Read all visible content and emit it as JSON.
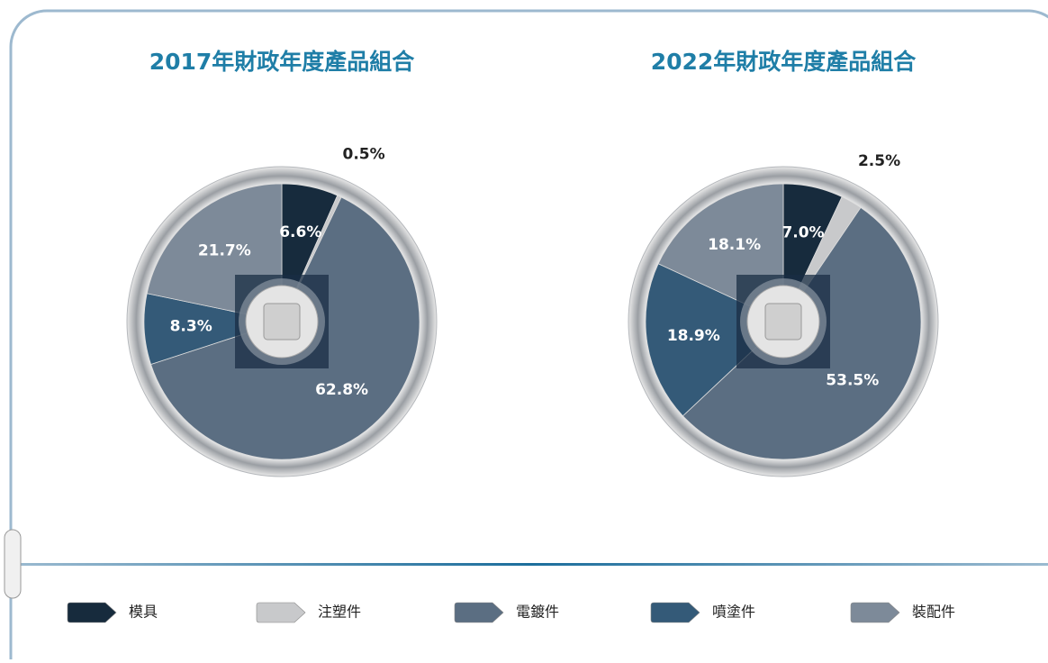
{
  "legend": {
    "categories": [
      "模具",
      "注塑件",
      "電鍍件",
      "噴塗件",
      "裝配件"
    ],
    "colors": [
      "#172b3d",
      "#c8c9cb",
      "#5b6e82",
      "#345a78",
      "#7d8a99"
    ]
  },
  "chart_data": [
    {
      "type": "pie",
      "title": "2017年財政年度產品組合",
      "values": [
        6.6,
        0.5,
        62.8,
        8.3,
        21.7
      ],
      "value_labels": [
        "6.6%",
        "0.5%",
        "62.8%",
        "8.3%",
        "21.7%"
      ]
    },
    {
      "type": "pie",
      "title": "2022年財政年度產品組合",
      "values": [
        7.0,
        2.5,
        53.5,
        18.9,
        18.1
      ],
      "value_labels": [
        "7.0%",
        "2.5%",
        "53.5%",
        "18.9%",
        "18.1%"
      ]
    }
  ]
}
